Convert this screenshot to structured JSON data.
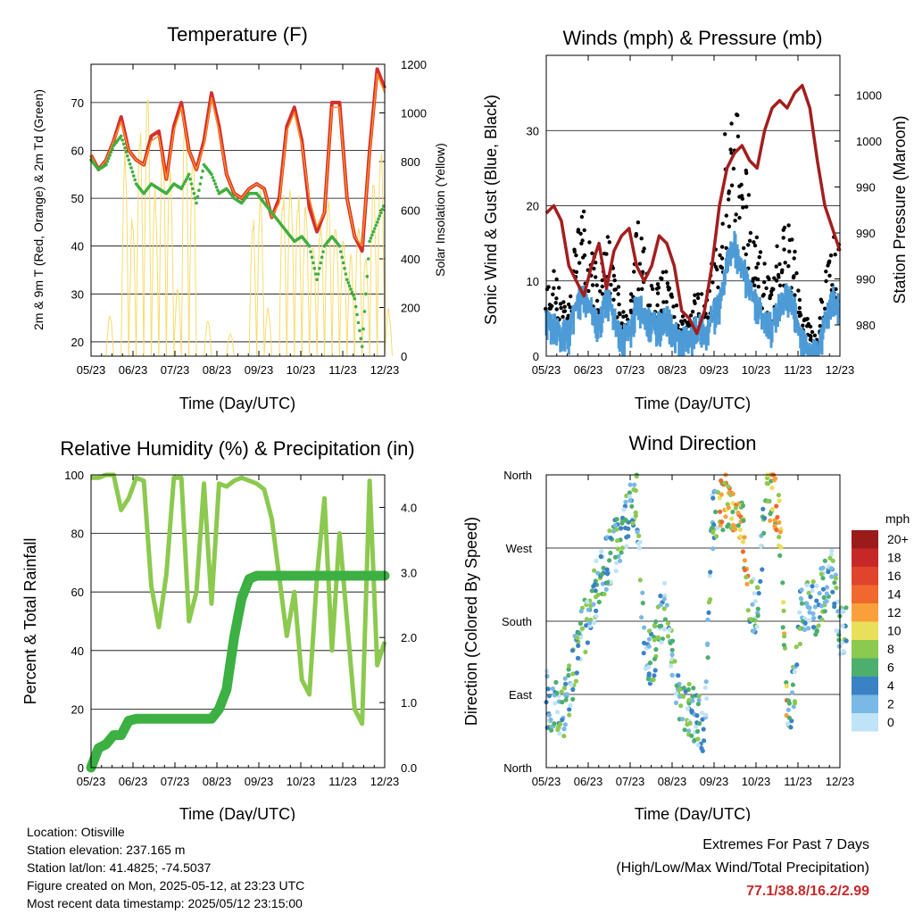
{
  "footer": {
    "location": "Location: Otisville",
    "elevation": "Station elevation: 237.165 m",
    "latlon": "Station lat/lon: 41.4825; -74.5037",
    "created": "Figure created on Mon, 2025-05-12, at 23:23 UTC",
    "recent": "Most recent data timestamp: 2025/05/12 23:15:00"
  },
  "extremes": {
    "title": "Extremes For Past 7 Days",
    "subtitle": "(High/Low/Max Wind/Total Precipitation)",
    "values": "77.1/38.8/16.2/2.99"
  },
  "colors": {
    "red": "#d32f2f",
    "orange": "#ff8c1a",
    "green": "#3fae3f",
    "yellow": "#f6dc6a",
    "black": "#000000",
    "blue": "#4d9bd6",
    "maroon": "#a31e1e",
    "rh": "#8cc94f",
    "rain": "#3cb043"
  },
  "chart_data": [
    {
      "type": "line",
      "title": "Temperature (F)",
      "xlabel": "Time (Day/UTC)",
      "ylabel": "2m & 9m T (Red, Orange) & 2m Td (Green)",
      "ylabel_right": "Solar Insolation (Yellow)",
      "xticks": [
        "05/23",
        "06/23",
        "07/23",
        "08/23",
        "09/23",
        "10/23",
        "11/23",
        "12/23"
      ],
      "ylim": [
        17,
        78
      ],
      "yticks": [
        20,
        30,
        40,
        50,
        60,
        70
      ],
      "ylim_right": [
        0,
        1200
      ],
      "yticks_right": [
        0,
        200,
        400,
        600,
        800,
        1000,
        1200
      ],
      "grid": true,
      "series": [
        {
          "name": "2m T",
          "color": "red",
          "values": [
            59,
            56,
            58,
            62,
            67,
            60,
            58,
            57,
            63,
            64,
            54,
            65,
            70,
            60,
            56,
            62,
            72,
            65,
            55,
            51,
            50,
            52,
            53,
            52,
            46,
            50,
            65,
            69,
            62,
            48,
            43,
            47,
            70,
            70,
            50,
            42,
            39,
            60,
            77,
            73
          ]
        },
        {
          "name": "9m T",
          "color": "orange",
          "values": [
            59,
            56,
            58,
            62,
            66,
            60,
            58,
            57,
            62,
            63,
            54,
            64,
            69,
            60,
            56,
            61,
            71,
            64,
            55,
            51,
            50,
            52,
            53,
            52,
            46,
            49,
            64,
            68,
            61,
            50,
            44,
            47,
            69,
            69,
            50,
            42,
            40,
            59,
            76,
            72
          ]
        },
        {
          "name": "2m Td",
          "color": "green",
          "values": [
            58,
            56,
            57,
            61,
            63,
            58,
            53,
            51,
            53,
            52,
            51,
            53,
            52,
            55,
            49,
            57,
            55,
            51,
            52,
            50,
            49,
            51,
            51,
            49,
            47,
            45,
            43,
            41,
            42,
            40,
            33,
            40,
            42,
            40,
            33,
            29,
            19,
            41,
            45,
            49
          ]
        },
        {
          "name": "Solar Insolation",
          "color": "yellow",
          "axis": "right",
          "days": [
            0,
            1,
            2,
            3,
            4,
            5,
            6,
            7,
            8,
            9,
            10,
            11,
            12,
            13,
            14,
            15,
            16,
            17,
            18,
            19,
            20,
            21,
            22,
            23,
            24,
            25,
            26,
            27,
            28,
            29,
            30,
            31,
            32,
            33,
            34,
            35,
            36,
            37,
            38,
            39
          ],
          "values": [
            0,
            0,
            180,
            0,
            900,
            600,
            1000,
            1150,
            700,
            950,
            850,
            300,
            1100,
            920,
            0,
            160,
            0,
            0,
            100,
            0,
            0,
            600,
            700,
            200,
            0,
            700,
            750,
            700,
            650,
            500,
            600,
            700,
            600,
            500,
            450,
            600,
            450,
            800,
            950,
            200
          ]
        }
      ]
    },
    {
      "type": "scatter",
      "title": "Winds (mph) & Pressure (mb)",
      "xlabel": "Time (Day/UTC)",
      "ylabel": "Sonic Wind & Gust (Blue, Black)",
      "ylabel_right": "Station Pressure (Maroon)",
      "xticks": [
        "05/23",
        "06/23",
        "07/23",
        "08/23",
        "09/23",
        "10/23",
        "11/23",
        "12/23"
      ],
      "ylim": [
        0,
        40
      ],
      "yticks": [
        0,
        10,
        20,
        30
      ],
      "yticks_right_labels": [
        "980",
        "990",
        "990",
        "990",
        "1000",
        "1000"
      ],
      "grid": true,
      "series": [
        {
          "name": "Gust",
          "color": "black",
          "values": [
            10,
            11,
            8,
            7,
            14,
            18,
            12,
            9,
            16,
            10,
            6,
            5,
            16,
            12,
            8,
            9,
            10,
            6,
            5,
            4,
            8,
            7,
            10,
            14,
            26,
            30,
            24,
            18,
            14,
            10,
            8,
            14,
            16,
            12,
            5,
            4,
            2,
            10,
            14,
            12
          ]
        },
        {
          "name": "Wind",
          "color": "blue",
          "values": [
            5,
            4,
            3,
            3,
            7,
            8,
            6,
            4,
            8,
            5,
            2,
            3,
            7,
            6,
            4,
            4,
            5,
            3,
            2,
            2,
            4,
            3,
            5,
            7,
            12,
            15,
            12,
            9,
            7,
            4,
            4,
            7,
            8,
            6,
            2,
            1,
            0,
            5,
            8,
            6
          ]
        },
        {
          "name": "Pressure",
          "color": "maroon",
          "values": [
            19,
            20,
            18,
            12,
            10,
            8,
            12,
            15,
            9,
            14,
            16,
            17,
            12,
            10,
            12,
            16,
            15,
            12,
            6,
            5,
            3,
            6,
            12,
            20,
            25,
            27,
            28,
            26,
            25,
            30,
            33,
            34,
            33,
            35,
            36,
            33,
            26,
            20,
            17,
            14
          ]
        }
      ]
    },
    {
      "type": "line",
      "title": "Relative Humidity (%) & Precipitation (in)",
      "xlabel": "Time (Day/UTC)",
      "ylabel": "Percent & Total Rainfall",
      "xticks": [
        "05/23",
        "06/23",
        "07/23",
        "08/23",
        "09/23",
        "10/23",
        "11/23",
        "12/23"
      ],
      "ylim": [
        0,
        100
      ],
      "yticks": [
        0,
        20,
        40,
        60,
        80,
        100
      ],
      "ylim_right": [
        0.0,
        4.5
      ],
      "yticks_right": [
        "0.0",
        "1.0",
        "2.0",
        "3.0",
        "4.0"
      ],
      "grid": true,
      "series": [
        {
          "name": "RH",
          "color": "rh",
          "values": [
            99,
            99,
            100,
            100,
            88,
            92,
            99,
            98,
            62,
            48,
            66,
            99,
            99,
            50,
            60,
            97,
            56,
            97,
            96,
            98,
            99,
            98,
            97,
            95,
            85,
            65,
            45,
            60,
            30,
            25,
            65,
            92,
            40,
            80,
            50,
            20,
            15,
            98,
            35,
            43
          ]
        },
        {
          "name": "Total Rainfall",
          "color": "rain",
          "axis": "right",
          "values": [
            0,
            0.3,
            0.36,
            0.5,
            0.5,
            0.72,
            0.75,
            0.75,
            0.75,
            0.75,
            0.75,
            0.75,
            0.75,
            0.75,
            0.75,
            0.75,
            0.75,
            0.9,
            1.2,
            2.0,
            2.6,
            2.9,
            2.95,
            2.95,
            2.95,
            2.95,
            2.95,
            2.95,
            2.95,
            2.95,
            2.95,
            2.95,
            2.95,
            2.95,
            2.95,
            2.95,
            2.95,
            2.95,
            2.95,
            2.95
          ]
        }
      ]
    },
    {
      "type": "scatter",
      "title": "Wind Direction",
      "xlabel": "Time (Day/UTC)",
      "ylabel": "Direction (Colored By Speed)",
      "xticks": [
        "05/23",
        "06/23",
        "07/23",
        "08/23",
        "09/23",
        "10/23",
        "11/23",
        "12/23"
      ],
      "yticks": [
        "North",
        "East",
        "South",
        "West",
        "North"
      ],
      "ylim": [
        0,
        360
      ],
      "grid": true,
      "legend": {
        "title": "mph",
        "labels": [
          "20+",
          "18",
          "16",
          "14",
          "12",
          "10",
          "8",
          "6",
          "4",
          "2",
          "0"
        ],
        "colors": [
          "#9b1b1b",
          "#c62828",
          "#e0442c",
          "#f0682e",
          "#f9a03c",
          "#e8e05a",
          "#8cc94f",
          "#4caf6e",
          "#3a82c4",
          "#7ab8e6",
          "#bfe3f7"
        ]
      },
      "series": [
        {
          "name": "Direction",
          "values": [
            [
              0,
              85
            ],
            [
              1,
              75
            ],
            [
              2,
              60
            ],
            [
              3,
              95
            ],
            [
              4,
              140
            ],
            [
              5,
              170
            ],
            [
              6,
              200
            ],
            [
              7,
              230
            ],
            [
              8,
              250
            ],
            [
              9,
              270
            ],
            [
              10,
              290
            ],
            [
              11,
              310
            ],
            [
              12,
              340
            ],
            [
              13,
              150
            ],
            [
              14,
              130
            ],
            [
              15,
              180
            ],
            [
              16,
              200
            ],
            [
              17,
              110
            ],
            [
              18,
              85
            ],
            [
              19,
              70
            ],
            [
              20,
              60
            ],
            [
              21,
              40
            ],
            [
              22,
              300
            ],
            [
              23,
              320
            ],
            [
              24,
              330
            ],
            [
              25,
              320
            ],
            [
              26,
              300
            ],
            [
              27,
              210
            ],
            [
              28,
              190
            ],
            [
              29,
              320
            ],
            [
              30,
              340
            ],
            [
              31,
              300
            ],
            [
              32,
              60
            ],
            [
              33,
              110
            ],
            [
              34,
              210
            ],
            [
              35,
              190
            ],
            [
              36,
              200
            ],
            [
              37,
              220
            ],
            [
              38,
              240
            ],
            [
              39,
              170
            ]
          ]
        }
      ]
    }
  ]
}
